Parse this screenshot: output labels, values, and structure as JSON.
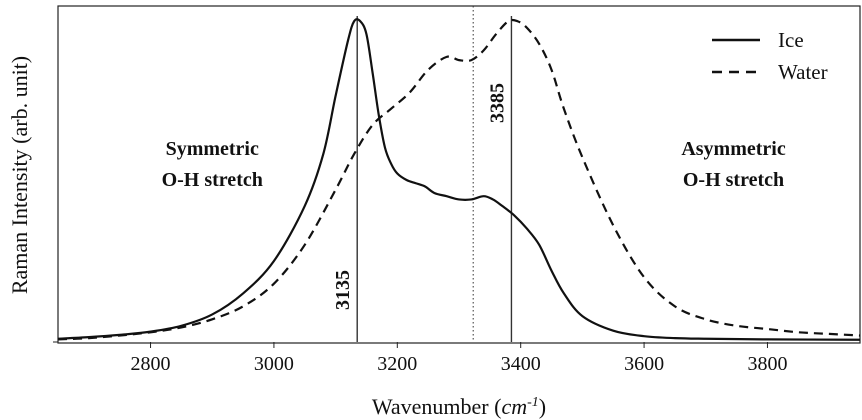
{
  "chart_data": {
    "type": "line",
    "title": "",
    "xlabel_main": "Wavenumber (",
    "xlabel_unit_base": "cm",
    "xlabel_unit_exp": "-1",
    "xlabel_close": ")",
    "ylabel": "Raman Intensity (arb. unit)",
    "xlim": [
      2650,
      3950
    ],
    "ylim": [
      0,
      1
    ],
    "x_ticks": [
      "2800",
      "3000",
      "3200",
      "3400",
      "3600",
      "3800"
    ],
    "grid": false,
    "legend": {
      "placement": "top-right",
      "entries": [
        {
          "label": "Ice",
          "style": "solid"
        },
        {
          "label": "Water",
          "style": "dashed"
        }
      ]
    },
    "series": [
      {
        "name": "Ice",
        "style": "solid",
        "x": [
          2650,
          2700,
          2750,
          2800,
          2850,
          2900,
          2950,
          3000,
          3050,
          3080,
          3100,
          3120,
          3130,
          3140,
          3150,
          3160,
          3170,
          3180,
          3190,
          3200,
          3215,
          3230,
          3245,
          3260,
          3280,
          3300,
          3320,
          3340,
          3355,
          3370,
          3390,
          3410,
          3430,
          3450,
          3470,
          3500,
          3550,
          3600,
          3650,
          3700,
          3800,
          3950
        ],
        "y": [
          0.01,
          0.015,
          0.022,
          0.032,
          0.05,
          0.085,
          0.15,
          0.25,
          0.42,
          0.58,
          0.76,
          0.93,
          0.99,
          0.99,
          0.95,
          0.83,
          0.7,
          0.6,
          0.55,
          0.52,
          0.5,
          0.49,
          0.48,
          0.46,
          0.45,
          0.44,
          0.44,
          0.45,
          0.44,
          0.42,
          0.39,
          0.35,
          0.3,
          0.22,
          0.15,
          0.08,
          0.035,
          0.018,
          0.012,
          0.01,
          0.008,
          0.007
        ]
      },
      {
        "name": "Water",
        "style": "dashed",
        "x": [
          2650,
          2700,
          2750,
          2800,
          2850,
          2900,
          2950,
          3000,
          3050,
          3100,
          3130,
          3160,
          3190,
          3220,
          3250,
          3280,
          3300,
          3320,
          3340,
          3360,
          3380,
          3395,
          3410,
          3430,
          3450,
          3470,
          3500,
          3550,
          3600,
          3650,
          3700,
          3750,
          3800,
          3850,
          3900,
          3950
        ],
        "y": [
          0.008,
          0.012,
          0.02,
          0.03,
          0.045,
          0.07,
          0.11,
          0.18,
          0.3,
          0.47,
          0.58,
          0.67,
          0.72,
          0.77,
          0.84,
          0.88,
          0.87,
          0.87,
          0.9,
          0.95,
          0.99,
          0.99,
          0.97,
          0.92,
          0.84,
          0.72,
          0.57,
          0.36,
          0.2,
          0.11,
          0.07,
          0.05,
          0.04,
          0.03,
          0.025,
          0.02
        ]
      }
    ],
    "reference_lines": [
      {
        "x": 3135,
        "style": "solid",
        "label": "3135",
        "label_side": "bottom"
      },
      {
        "x": 3385,
        "style": "solid",
        "label": "3385",
        "label_side": "top"
      },
      {
        "x": 3323,
        "style": "dotted"
      }
    ],
    "annotations": [
      {
        "lines": [
          "Symmetric",
          "O-H stretch"
        ],
        "x": 2900,
        "y": 0.55
      },
      {
        "lines": [
          "Asymmetric",
          "O-H stretch"
        ],
        "x": 3745,
        "y": 0.55
      }
    ]
  }
}
